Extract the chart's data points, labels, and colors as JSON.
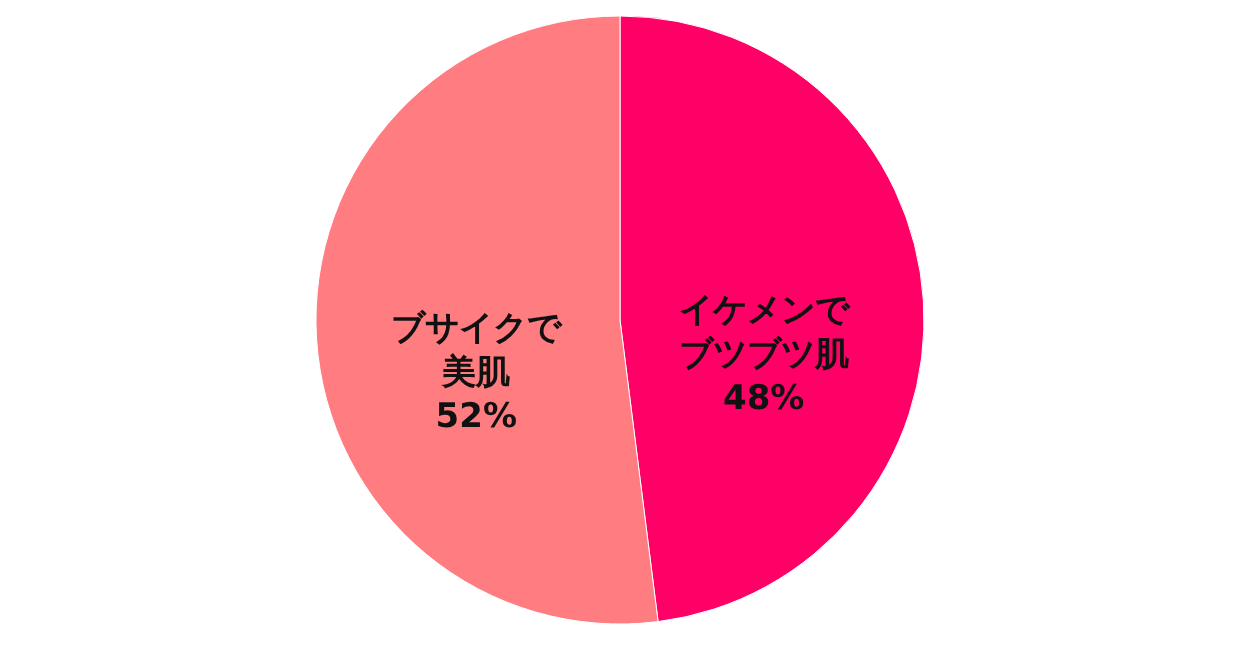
{
  "chart_data": {
    "type": "pie",
    "categories": [
      "イケメンでブツブツ肌",
      "ブサイクで美肌"
    ],
    "values": [
      48,
      52
    ],
    "colors": [
      "#ff0066",
      "#ff7c80"
    ],
    "value_labels": [
      "48%",
      "52%"
    ]
  }
}
